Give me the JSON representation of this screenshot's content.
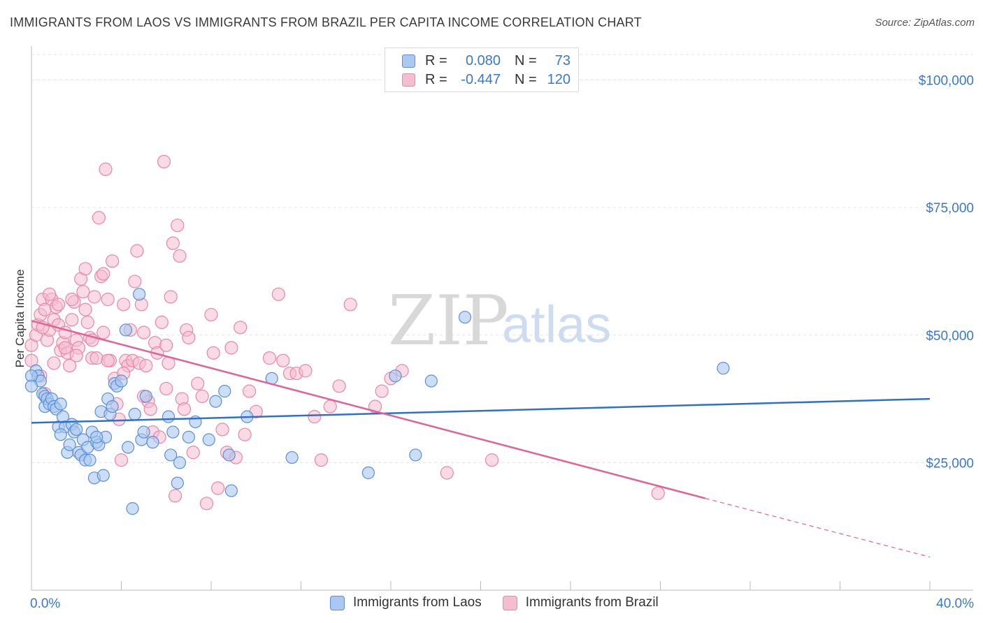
{
  "header": {
    "title": "IMMIGRANTS FROM LAOS VS IMMIGRANTS FROM BRAZIL PER CAPITA INCOME CORRELATION CHART",
    "source": "Source: ZipAtlas.com"
  },
  "watermark": {
    "zip": "ZIP",
    "atlas": "atlas"
  },
  "colors": {
    "blue_fill": "#aac8f0",
    "blue_stroke": "#5b8fd8",
    "blue_line": "#2f6fcf",
    "pink_fill": "#f6bcd0",
    "pink_stroke": "#e887a8",
    "pink_line": "#e0639a",
    "axis_label": "#3a78d0",
    "grid": "#e3e3e3"
  },
  "legend": {
    "rows": [
      {
        "r_label": "R =",
        "r_value": "0.080",
        "n_label": "N =",
        "n_value": "73"
      },
      {
        "r_label": "R =",
        "r_value": "-0.447",
        "n_label": "N =",
        "n_value": "120"
      }
    ]
  },
  "bottom_legend": {
    "series1": "Immigrants from Laos",
    "series2": "Immigrants from Brazil"
  },
  "chart_data": {
    "type": "scatter",
    "xlabel": "",
    "ylabel": "Per Capita Income",
    "xlim": [
      0,
      40
    ],
    "ylim": [
      0,
      105000
    ],
    "x_tick_labels": [
      "0.0%",
      "40.0%"
    ],
    "y_ticks": [
      25000,
      50000,
      75000,
      100000
    ],
    "y_tick_labels": [
      "$25,000",
      "$50,000",
      "$75,000",
      "$100,000"
    ],
    "grid": true,
    "legend_position": "top-center",
    "series": [
      {
        "name": "Immigrants from Laos",
        "r": 0.08,
        "n": 73,
        "trend": {
          "x": [
            0,
            40
          ],
          "y": [
            32800,
            37500
          ]
        },
        "points": [
          [
            0.2,
            43000
          ],
          [
            0.3,
            42000
          ],
          [
            0.4,
            41000
          ],
          [
            0.5,
            38500
          ],
          [
            0.6,
            38000
          ],
          [
            0.6,
            36000
          ],
          [
            0.7,
            37500
          ],
          [
            0.8,
            36500
          ],
          [
            0.9,
            37500
          ],
          [
            1.0,
            36000
          ],
          [
            1.1,
            35500
          ],
          [
            1.2,
            32000
          ],
          [
            1.3,
            36500
          ],
          [
            1.4,
            34000
          ],
          [
            1.5,
            32000
          ],
          [
            1.6,
            27000
          ],
          [
            1.7,
            28500
          ],
          [
            1.8,
            32500
          ],
          [
            1.9,
            31000
          ],
          [
            2.0,
            31500
          ],
          [
            2.1,
            27000
          ],
          [
            2.2,
            26500
          ],
          [
            2.3,
            29500
          ],
          [
            2.4,
            25500
          ],
          [
            2.5,
            28000
          ],
          [
            2.6,
            25500
          ],
          [
            2.7,
            31000
          ],
          [
            2.8,
            22000
          ],
          [
            2.9,
            29000
          ],
          [
            3.0,
            28500
          ],
          [
            3.1,
            35000
          ],
          [
            3.2,
            22500
          ],
          [
            3.3,
            30000
          ],
          [
            3.4,
            37500
          ],
          [
            3.5,
            34500
          ],
          [
            3.6,
            36000
          ],
          [
            3.7,
            40500
          ],
          [
            3.8,
            40000
          ],
          [
            4.0,
            41000
          ],
          [
            4.2,
            51000
          ],
          [
            4.3,
            28000
          ],
          [
            4.5,
            16000
          ],
          [
            4.6,
            34500
          ],
          [
            4.8,
            58000
          ],
          [
            4.9,
            29500
          ],
          [
            5.0,
            31000
          ],
          [
            5.1,
            38000
          ],
          [
            5.4,
            29000
          ],
          [
            6.1,
            34000
          ],
          [
            6.2,
            26500
          ],
          [
            6.3,
            31000
          ],
          [
            6.5,
            21000
          ],
          [
            6.6,
            25000
          ],
          [
            7.0,
            30000
          ],
          [
            7.3,
            33000
          ],
          [
            7.9,
            29500
          ],
          [
            8.2,
            37000
          ],
          [
            8.6,
            39000
          ],
          [
            8.8,
            26500
          ],
          [
            8.9,
            19500
          ],
          [
            9.6,
            34000
          ],
          [
            10.7,
            41500
          ],
          [
            11.6,
            26000
          ],
          [
            15.0,
            23000
          ],
          [
            16.2,
            42000
          ],
          [
            17.1,
            26500
          ],
          [
            17.8,
            41000
          ],
          [
            19.3,
            53500
          ],
          [
            30.8,
            43500
          ],
          [
            2.9,
            30000
          ],
          [
            1.3,
            30500
          ],
          [
            0.0,
            42000
          ],
          [
            0.0,
            40000
          ]
        ]
      },
      {
        "name": "Immigrants from Brazil",
        "r": -0.447,
        "n": 120,
        "trend": {
          "x": [
            0,
            30
          ],
          "y": [
            52800,
            18000
          ]
        },
        "trend_dashed": {
          "x": [
            30,
            40
          ],
          "y": [
            18000,
            6500
          ]
        },
        "points": [
          [
            0.0,
            45000
          ],
          [
            0.0,
            48000
          ],
          [
            0.2,
            50000
          ],
          [
            0.3,
            52000
          ],
          [
            0.4,
            54000
          ],
          [
            0.5,
            57000
          ],
          [
            0.6,
            55000
          ],
          [
            0.7,
            49000
          ],
          [
            0.8,
            51000
          ],
          [
            0.9,
            57000
          ],
          [
            1.0,
            53000
          ],
          [
            1.1,
            55500
          ],
          [
            1.2,
            52000
          ],
          [
            1.3,
            47000
          ],
          [
            1.4,
            48500
          ],
          [
            1.5,
            50500
          ],
          [
            1.6,
            46500
          ],
          [
            1.7,
            44000
          ],
          [
            1.8,
            53000
          ],
          [
            1.9,
            56500
          ],
          [
            2.0,
            49000
          ],
          [
            2.1,
            47500
          ],
          [
            2.2,
            61000
          ],
          [
            2.3,
            58500
          ],
          [
            2.4,
            55000
          ],
          [
            2.5,
            52500
          ],
          [
            2.6,
            49500
          ],
          [
            2.7,
            45500
          ],
          [
            2.8,
            57500
          ],
          [
            2.9,
            45500
          ],
          [
            3.0,
            73000
          ],
          [
            3.1,
            61500
          ],
          [
            3.2,
            50500
          ],
          [
            3.3,
            82500
          ],
          [
            3.4,
            57000
          ],
          [
            3.5,
            45000
          ],
          [
            3.6,
            64500
          ],
          [
            3.7,
            41500
          ],
          [
            3.8,
            36500
          ],
          [
            3.9,
            33500
          ],
          [
            4.0,
            25500
          ],
          [
            4.1,
            56000
          ],
          [
            4.2,
            45000
          ],
          [
            4.3,
            44000
          ],
          [
            4.4,
            51000
          ],
          [
            4.5,
            45000
          ],
          [
            4.6,
            60500
          ],
          [
            4.7,
            66500
          ],
          [
            4.8,
            44500
          ],
          [
            4.9,
            56000
          ],
          [
            5.0,
            50500
          ],
          [
            5.1,
            44000
          ],
          [
            5.2,
            37000
          ],
          [
            5.3,
            35500
          ],
          [
            5.4,
            31000
          ],
          [
            5.5,
            48500
          ],
          [
            5.6,
            46500
          ],
          [
            5.7,
            30000
          ],
          [
            5.8,
            52500
          ],
          [
            5.9,
            84000
          ],
          [
            6.0,
            48000
          ],
          [
            6.1,
            44500
          ],
          [
            6.2,
            57500
          ],
          [
            6.3,
            68000
          ],
          [
            6.4,
            18500
          ],
          [
            6.5,
            71500
          ],
          [
            6.6,
            65500
          ],
          [
            6.7,
            37500
          ],
          [
            6.8,
            35500
          ],
          [
            6.9,
            51000
          ],
          [
            7.0,
            49500
          ],
          [
            7.2,
            27000
          ],
          [
            7.4,
            40500
          ],
          [
            7.6,
            38000
          ],
          [
            7.8,
            17000
          ],
          [
            8.0,
            54000
          ],
          [
            8.1,
            46500
          ],
          [
            8.3,
            20000
          ],
          [
            8.5,
            31500
          ],
          [
            8.7,
            27000
          ],
          [
            8.9,
            47500
          ],
          [
            9.1,
            26000
          ],
          [
            9.3,
            51500
          ],
          [
            9.5,
            30500
          ],
          [
            9.7,
            39000
          ],
          [
            10.0,
            35000
          ],
          [
            10.6,
            45500
          ],
          [
            11.0,
            58000
          ],
          [
            11.2,
            45000
          ],
          [
            11.5,
            42500
          ],
          [
            11.8,
            42500
          ],
          [
            12.2,
            43000
          ],
          [
            12.6,
            34000
          ],
          [
            12.9,
            25500
          ],
          [
            13.3,
            36000
          ],
          [
            13.7,
            40000
          ],
          [
            14.2,
            56000
          ],
          [
            15.3,
            36000
          ],
          [
            15.6,
            39000
          ],
          [
            16.0,
            41500
          ],
          [
            16.5,
            43000
          ],
          [
            18.5,
            23000
          ],
          [
            20.5,
            25500
          ],
          [
            27.9,
            19000
          ],
          [
            0.5,
            51500
          ],
          [
            0.8,
            58000
          ],
          [
            1.2,
            56000
          ],
          [
            1.8,
            57000
          ],
          [
            2.4,
            63000
          ],
          [
            3.2,
            62000
          ],
          [
            0.4,
            42000
          ],
          [
            0.6,
            38500
          ],
          [
            1.0,
            44500
          ],
          [
            1.5,
            47500
          ],
          [
            2.0,
            46000
          ],
          [
            2.7,
            49000
          ],
          [
            3.4,
            45000
          ],
          [
            4.1,
            42500
          ],
          [
            5.0,
            38000
          ],
          [
            6.0,
            39500
          ]
        ]
      }
    ]
  }
}
